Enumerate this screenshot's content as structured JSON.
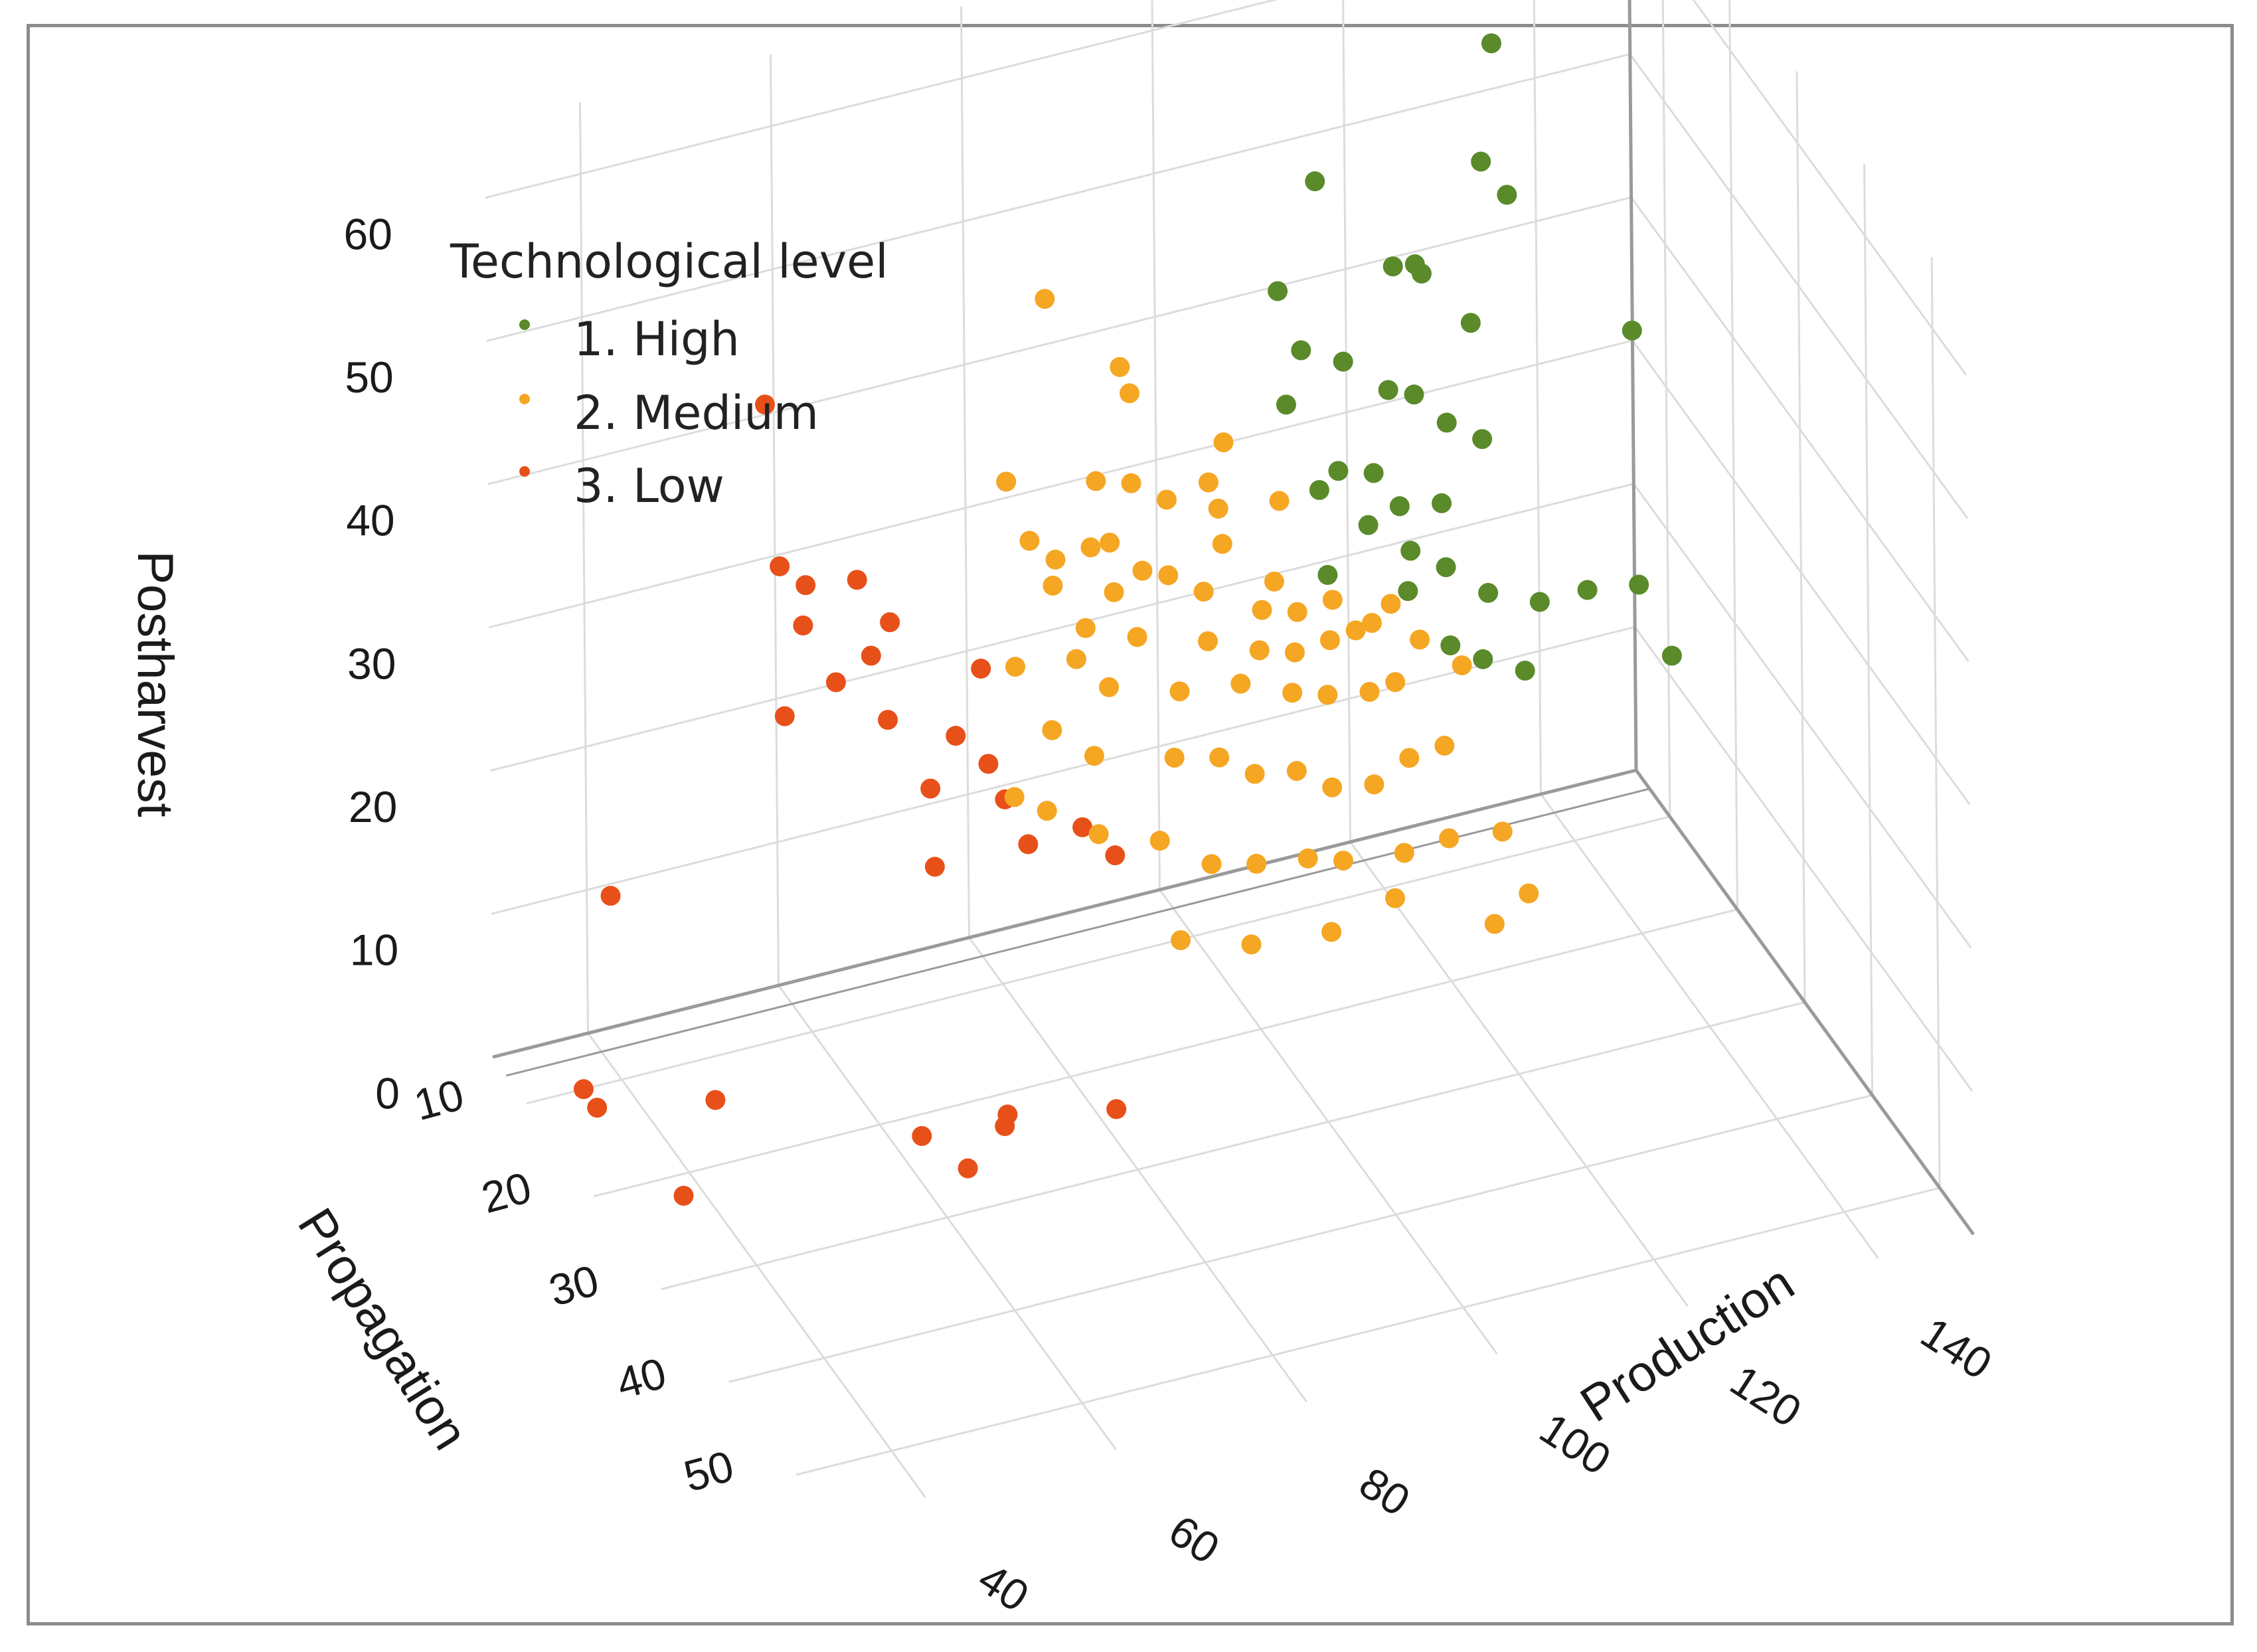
{
  "chart_data": {
    "type": "scatter",
    "projection": "3d",
    "title": "",
    "axes": {
      "x": {
        "label": "Production",
        "ticks": [
          "40",
          "60",
          "80",
          "100",
          "120",
          "140"
        ],
        "range": [
          30,
          150
        ]
      },
      "y": {
        "label": "Propagation",
        "ticks": [
          "10",
          "20",
          "30",
          "40",
          "50"
        ],
        "range": [
          5,
          55
        ]
      },
      "z": {
        "label": "Postharvest",
        "ticks": [
          "0",
          "10",
          "20",
          "30",
          "40",
          "50",
          "60"
        ],
        "range": [
          0,
          65
        ]
      }
    },
    "grid": true,
    "legend": {
      "title": "Technological level",
      "placement": "top-left",
      "entries": [
        {
          "name": "1. High",
          "color": "#5a8a2a"
        },
        {
          "name": "2. Medium",
          "color": "#f5a623"
        },
        {
          "name": "3. Low",
          "color": "#e8501a"
        }
      ]
    },
    "series": [
      {
        "name": "1. High",
        "color": "#5a8a2a",
        "points": [
          [
            137,
            5,
            66
          ],
          [
            132,
            10,
            57
          ],
          [
            128,
            14,
            52
          ],
          [
            130,
            15,
            50
          ],
          [
            136,
            25,
            46
          ],
          [
            112,
            12,
            52
          ],
          [
            118,
            15,
            47
          ],
          [
            121,
            14,
            46
          ],
          [
            121,
            15,
            46
          ],
          [
            124,
            18,
            44
          ],
          [
            108,
            12,
            45
          ],
          [
            109,
            14,
            42
          ],
          [
            112,
            16,
            42
          ],
          [
            116,
            17,
            40
          ],
          [
            118,
            18,
            40
          ],
          [
            120,
            20,
            39
          ],
          [
            123,
            21,
            38
          ],
          [
            106,
            16,
            40
          ],
          [
            110,
            18,
            36
          ],
          [
            113,
            19,
            36
          ],
          [
            115,
            20,
            34
          ],
          [
            118,
            22,
            35
          ],
          [
            108,
            18,
            35
          ],
          [
            111,
            21,
            34
          ],
          [
            114,
            23,
            33
          ],
          [
            117,
            24,
            32
          ],
          [
            120,
            26,
            31
          ],
          [
            124,
            28,
            31
          ],
          [
            129,
            28,
            31
          ],
          [
            113,
            24,
            31
          ],
          [
            116,
            26,
            28
          ],
          [
            118,
            28,
            28
          ],
          [
            121,
            30,
            28
          ],
          [
            133,
            30,
            32
          ],
          [
            135,
            32,
            28
          ],
          [
            106,
            22,
            32
          ]
        ]
      },
      {
        "name": "2. Medium",
        "color": "#f5a623",
        "points": [
          [
            85,
            10,
            47
          ],
          [
            91,
            14,
            42
          ],
          [
            90,
            14,
            44
          ],
          [
            98,
            18,
            40
          ],
          [
            78,
            14,
            38
          ],
          [
            95,
            20,
            39
          ],
          [
            101,
            22,
            38
          ],
          [
            86,
            16,
            38
          ],
          [
            89,
            17,
            38
          ],
          [
            92,
            18,
            37
          ],
          [
            96,
            20,
            37
          ],
          [
            79,
            16,
            35
          ],
          [
            86,
            18,
            35
          ],
          [
            95,
            22,
            36
          ],
          [
            81,
            17,
            34
          ],
          [
            84,
            18,
            35
          ],
          [
            88,
            20,
            34
          ],
          [
            90,
            21,
            34
          ],
          [
            93,
            22,
            33
          ],
          [
            99,
            24,
            34
          ],
          [
            80,
            18,
            33
          ],
          [
            85,
            20,
            33
          ],
          [
            97,
            25,
            33
          ],
          [
            100,
            26,
            33
          ],
          [
            103,
            27,
            34
          ],
          [
            82,
            20,
            31
          ],
          [
            86,
            22,
            31
          ],
          [
            92,
            24,
            31
          ],
          [
            96,
            26,
            31
          ],
          [
            99,
            27,
            31
          ],
          [
            102,
            28,
            32
          ],
          [
            104,
            29,
            33
          ],
          [
            105,
            30,
            34
          ],
          [
            107,
            30,
            35
          ],
          [
            76,
            18,
            28
          ],
          [
            81,
            20,
            29
          ],
          [
            83,
            22,
            28
          ],
          [
            89,
            24,
            28
          ],
          [
            94,
            26,
            29
          ],
          [
            98,
            28,
            29
          ],
          [
            101,
            29,
            29
          ],
          [
            104,
            31,
            30
          ],
          [
            106,
            32,
            31
          ],
          [
            110,
            30,
            32
          ],
          [
            113,
            32,
            31
          ],
          [
            77,
            22,
            26
          ],
          [
            80,
            24,
            25
          ],
          [
            87,
            26,
            25
          ],
          [
            91,
            27,
            25
          ],
          [
            94,
            28,
            24
          ],
          [
            97,
            30,
            25
          ],
          [
            100,
            31,
            24
          ],
          [
            103,
            33,
            25
          ],
          [
            106,
            34,
            27
          ],
          [
            109,
            35,
            28
          ],
          [
            73,
            22,
            22
          ],
          [
            75,
            24,
            22
          ],
          [
            79,
            26,
            21
          ],
          [
            84,
            28,
            21
          ],
          [
            88,
            30,
            20
          ],
          [
            92,
            31,
            20
          ],
          [
            96,
            33,
            21
          ],
          [
            99,
            34,
            21
          ],
          [
            104,
            36,
            22
          ],
          [
            108,
            37,
            23
          ],
          [
            84,
            31,
            16
          ],
          [
            90,
            33,
            16
          ],
          [
            97,
            35,
            17
          ],
          [
            103,
            36,
            19
          ],
          [
            115,
            35,
            21
          ],
          [
            117,
            36,
            17
          ],
          [
            112,
            38,
            17
          ]
        ]
      },
      {
        "name": "3. Low",
        "color": "#e8501a",
        "points": [
          [
            57,
            8,
            43
          ],
          [
            57,
            10,
            33
          ],
          [
            59,
            11,
            32
          ],
          [
            63,
            13,
            33
          ],
          [
            58,
            12,
            30
          ],
          [
            65,
            15,
            31
          ],
          [
            60,
            14,
            27
          ],
          [
            63,
            15,
            29
          ],
          [
            71,
            20,
            30
          ],
          [
            56,
            12,
            24
          ],
          [
            64,
            16,
            25
          ],
          [
            69,
            19,
            25
          ],
          [
            67,
            18,
            21
          ],
          [
            71,
            21,
            24
          ],
          [
            72,
            22,
            22
          ],
          [
            73,
            24,
            20
          ],
          [
            78,
            25,
            21
          ],
          [
            80,
            27,
            20
          ],
          [
            66,
            20,
            17
          ],
          [
            39,
            10,
            13
          ],
          [
            36,
            10,
            0
          ],
          [
            36,
            12,
            0
          ],
          [
            47,
            14,
            0
          ],
          [
            63,
            22,
            0
          ],
          [
            65,
            26,
            0
          ],
          [
            72,
            22,
            0
          ],
          [
            71,
            23,
            0
          ],
          [
            82,
            24,
            0
          ],
          [
            38,
            22,
            0
          ]
        ]
      }
    ]
  }
}
